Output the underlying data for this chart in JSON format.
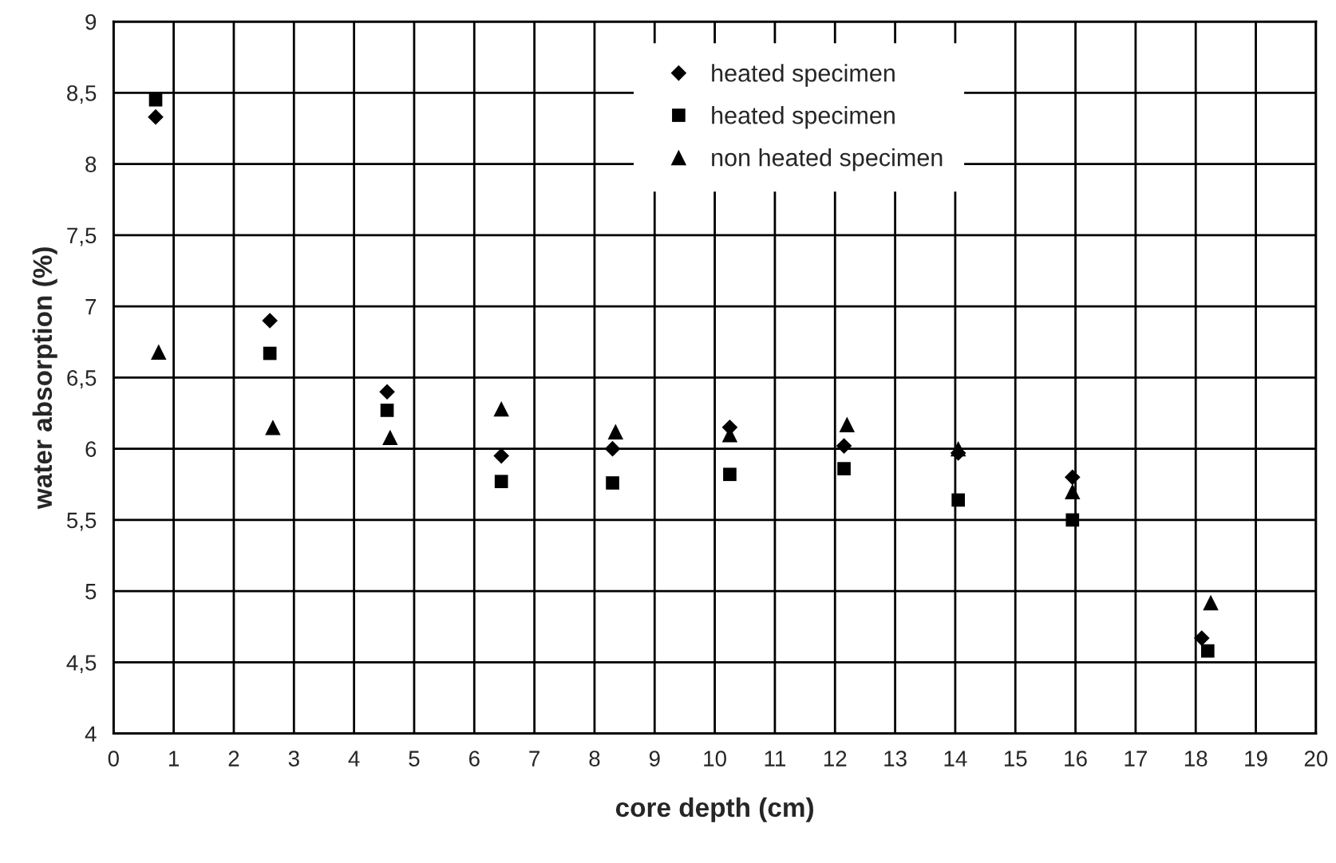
{
  "chart_data": {
    "type": "scatter",
    "xlabel": "core depth (cm)",
    "ylabel": "water absorption (%)",
    "xlim": [
      0,
      20
    ],
    "ylim": [
      4,
      9
    ],
    "xticks": [
      0,
      1,
      2,
      3,
      4,
      5,
      6,
      7,
      8,
      9,
      10,
      11,
      12,
      13,
      14,
      15,
      16,
      17,
      18,
      19,
      20
    ],
    "yticks": [
      4,
      {
        "value": 4.5,
        "label": "4,5"
      },
      5,
      {
        "value": 5.5,
        "label": "5,5"
      },
      6,
      {
        "value": 6.5,
        "label": "6,5"
      },
      7,
      {
        "value": 7.5,
        "label": "7,5"
      },
      8,
      {
        "value": 8.5,
        "label": "8,5"
      },
      9
    ],
    "grid": true,
    "legend": "top",
    "series": [
      {
        "name": "heated specimen",
        "color": "#000000",
        "marker": "diamond",
        "x": [
          0.7,
          2.6,
          4.55,
          6.45,
          8.3,
          10.25,
          12.15,
          14.05,
          15.95,
          18.1
        ],
        "values": [
          8.33,
          6.9,
          6.4,
          5.95,
          6.0,
          6.15,
          6.02,
          5.97,
          5.8,
          4.67
        ]
      },
      {
        "name": "heated specimen",
        "color": "#000000",
        "marker": "square",
        "x": [
          0.7,
          2.6,
          4.55,
          6.45,
          8.3,
          10.25,
          12.15,
          14.05,
          15.95,
          18.2
        ],
        "values": [
          8.45,
          6.67,
          6.27,
          5.77,
          5.76,
          5.82,
          5.86,
          5.64,
          5.5,
          4.58
        ]
      },
      {
        "name": "non heated specimen",
        "color": "#000000",
        "marker": "triangle",
        "x": [
          0.75,
          2.65,
          4.6,
          6.45,
          8.35,
          10.25,
          12.2,
          14.05,
          15.95,
          18.25
        ],
        "values": [
          6.68,
          6.15,
          6.08,
          6.28,
          6.12,
          6.1,
          6.17,
          6.0,
          5.7,
          4.92
        ]
      }
    ]
  }
}
